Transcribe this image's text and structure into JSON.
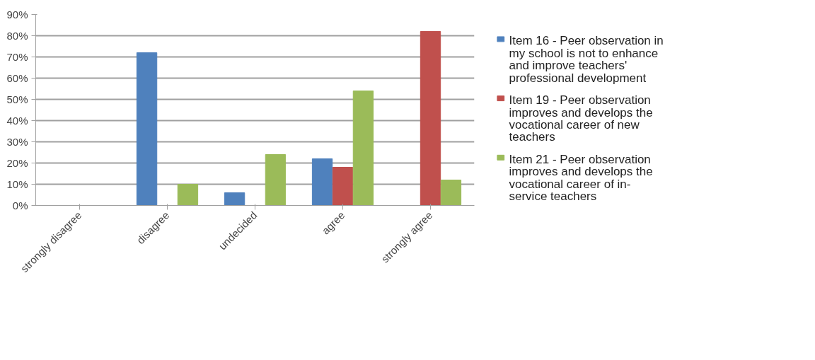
{
  "chart_data": {
    "type": "bar",
    "categories": [
      "strongly disagree",
      "disagree",
      "undecided",
      "agree",
      "strongly agree"
    ],
    "series": [
      {
        "name": "Item 16 - Peer observation in my school is not to enhance and improve teachers' professional development",
        "color": "#4f81bd",
        "values": [
          0,
          72,
          6,
          22,
          0
        ]
      },
      {
        "name": "Item 19 - Peer observation improves and develops the vocational career of new teachers",
        "color": "#c0504d",
        "values": [
          0,
          0,
          0,
          18,
          82
        ]
      },
      {
        "name": "Item 21 - Peer observation improves and develops the vocational career of in-service teachers",
        "color": "#9bbb59",
        "values": [
          0,
          10,
          24,
          54,
          12
        ]
      }
    ],
    "ylim": [
      0,
      90
    ],
    "yticks": [
      {
        "value": 0,
        "label": "0%"
      },
      {
        "value": 10,
        "label": "10%"
      },
      {
        "value": 20,
        "label": "20%"
      },
      {
        "value": 30,
        "label": "30%"
      },
      {
        "value": 40,
        "label": "40%"
      },
      {
        "value": 50,
        "label": "50%"
      },
      {
        "value": 60,
        "label": "60%"
      },
      {
        "value": 70,
        "label": "70%"
      },
      {
        "value": 80,
        "label": "80%"
      },
      {
        "value": 90,
        "label": "90%"
      }
    ],
    "grid": "y",
    "legend": "right"
  }
}
